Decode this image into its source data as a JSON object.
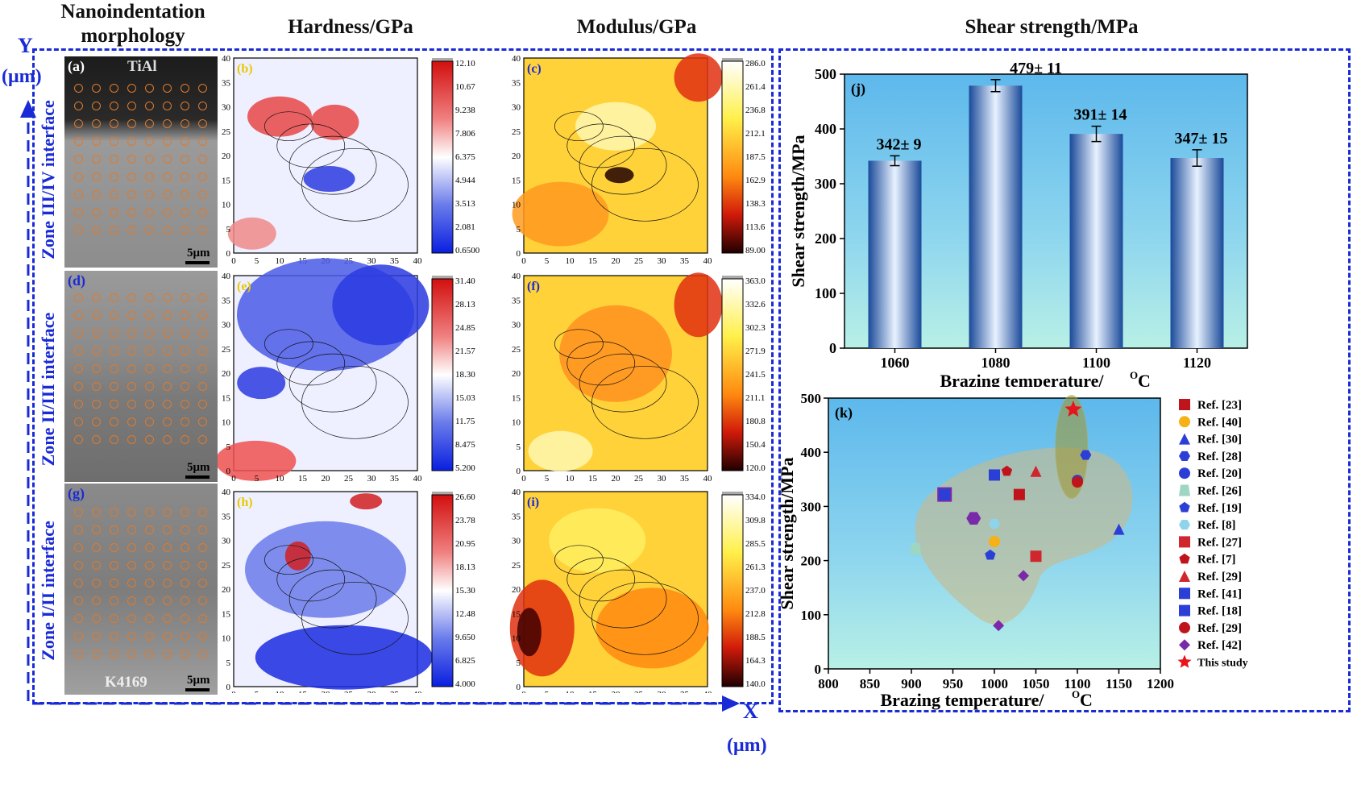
{
  "headers": {
    "morphology": "Nanoindentation morphology",
    "hardness": "Hardness/GPa",
    "modulus": "Modulus/GPa",
    "shear": "Shear strength/MPa"
  },
  "axes_labels": {
    "y_top": "Y",
    "y_unit": "(μm)",
    "x_right": "X",
    "x_unit": "(μm)"
  },
  "zones": [
    "Zone III/IV interface",
    "Zone II/III interface",
    "Zone I/II interface"
  ],
  "sem_panels": [
    {
      "letter": "(a)",
      "label_top": "TiAl",
      "label_bottom": "",
      "scale": "5μm"
    },
    {
      "letter": "(d)",
      "label_top": "",
      "label_bottom": "",
      "scale": "5μm"
    },
    {
      "letter": "(g)",
      "label_top": "",
      "label_bottom": "K4169",
      "scale": "5μm"
    }
  ],
  "contour_ticks": [
    "0",
    "5",
    "10",
    "15",
    "20",
    "25",
    "30",
    "35",
    "40"
  ],
  "contour_panels": [
    {
      "letter": "(b)",
      "kind": "hardness",
      "colorbar": [
        "12.10",
        "10.67",
        "9.238",
        "7.806",
        "6.375",
        "4.944",
        "3.513",
        "2.081",
        "0.6500"
      ]
    },
    {
      "letter": "(c)",
      "kind": "modulus",
      "colorbar": [
        "286.0",
        "261.4",
        "236.8",
        "212.1",
        "187.5",
        "162.9",
        "138.3",
        "113.6",
        "89.00"
      ]
    },
    {
      "letter": "(e)",
      "kind": "hardness",
      "colorbar": [
        "31.40",
        "28.13",
        "24.85",
        "21.57",
        "18.30",
        "15.03",
        "11.75",
        "8.475",
        "5.200"
      ]
    },
    {
      "letter": "(f)",
      "kind": "modulus",
      "colorbar": [
        "363.0",
        "332.6",
        "302.3",
        "271.9",
        "241.5",
        "211.1",
        "180.8",
        "150.4",
        "120.0"
      ]
    },
    {
      "letter": "(h)",
      "kind": "hardness",
      "colorbar": [
        "26.60",
        "23.78",
        "20.95",
        "18.13",
        "15.30",
        "12.48",
        "9.650",
        "6.825",
        "4.000"
      ]
    },
    {
      "letter": "(i)",
      "kind": "modulus",
      "colorbar": [
        "334.0",
        "309.8",
        "285.5",
        "261.3",
        "237.0",
        "212.8",
        "188.5",
        "164.3",
        "140.0"
      ]
    }
  ],
  "chart_data": [
    {
      "type": "bar",
      "panel": "(j)",
      "categories": [
        "1060",
        "1080",
        "1100",
        "1120"
      ],
      "values": [
        342,
        479,
        391,
        347
      ],
      "errors": [
        9,
        11,
        14,
        15
      ],
      "labels": [
        "342± 9",
        "479± 11",
        "391± 14",
        "347± 15"
      ],
      "xlabel": "Brazing temperature/",
      "xlabel_unit": "C",
      "xlabel_sup": "O",
      "ylabel": "Shear strength/MPa",
      "ylim": [
        0,
        500
      ],
      "yticks": [
        "0",
        "100",
        "200",
        "300",
        "400",
        "500"
      ]
    },
    {
      "type": "scatter",
      "panel": "(k)",
      "xlabel": "Brazing temperature/",
      "xlabel_unit": "C",
      "xlabel_sup": "O",
      "ylabel": "Shear strength/MPa",
      "xlim": [
        800,
        1200
      ],
      "ylim": [
        0,
        500
      ],
      "xticks": [
        "800",
        "850",
        "900",
        "950",
        "1000",
        "1050",
        "1100",
        "1150",
        "1200"
      ],
      "yticks": [
        "0",
        "100",
        "200",
        "300",
        "400",
        "500"
      ],
      "series": [
        {
          "name": "Ref. [23]",
          "marker": "square",
          "color": "#c0141c",
          "points": [
            [
              1030,
              322
            ]
          ]
        },
        {
          "name": "Ref. [40]",
          "marker": "circle",
          "color": "#f5b116",
          "points": [
            [
              1000,
              235
            ]
          ]
        },
        {
          "name": "Ref. [30]",
          "marker": "triangle",
          "color": "#2b3fd6",
          "points": [
            [
              1150,
              258
            ]
          ]
        },
        {
          "name": "Ref. [28]",
          "marker": "hexagon",
          "color": "#2b3fd6",
          "points": [
            [
              1110,
              395
            ]
          ]
        },
        {
          "name": "Ref. [20]",
          "marker": "circle",
          "color": "#2b3fd6",
          "points": [
            [
              1100,
              348
            ]
          ]
        },
        {
          "name": "Ref. [26]",
          "marker": "trapezoid",
          "color": "#9ed6c2",
          "points": [
            [
              905,
              222
            ]
          ]
        },
        {
          "name": "Ref. [19]",
          "marker": "pentagon",
          "color": "#2b3fd6",
          "points": [
            [
              995,
              210
            ]
          ]
        },
        {
          "name": "Ref. [8]",
          "marker": "hexagon",
          "color": "#8ed4ea",
          "points": [
            [
              1000,
              268
            ]
          ]
        },
        {
          "name": "Ref. [27]",
          "marker": "square",
          "color": "#d0262e",
          "points": [
            [
              1050,
              208
            ]
          ]
        },
        {
          "name": "Ref. [7]",
          "marker": "pentagon",
          "color": "#c0141c",
          "points": [
            [
              1015,
              365
            ]
          ]
        },
        {
          "name": "Ref. [29]",
          "marker": "triangle",
          "color": "#d0262e",
          "points": [
            [
              1050,
              365
            ]
          ]
        },
        {
          "name": "Ref. [41]",
          "marker": "square",
          "color": "#2b3fd6",
          "points": [
            [
              1000,
              358
            ]
          ]
        },
        {
          "name": "Ref. [18]",
          "marker": "square",
          "color": "#2b3fd6",
          "points": [
            [
              940,
              322
            ]
          ]
        },
        {
          "name": "Ref. [29]",
          "marker": "circle",
          "color": "#c0141c",
          "points": [
            [
              1100,
              345
            ]
          ]
        },
        {
          "name": "Ref. [42]",
          "marker": "diamond",
          "color": "#7a2aa8",
          "points": [
            [
              1035,
              172
            ],
            [
              1005,
              80
            ]
          ]
        },
        {
          "name": "This study",
          "marker": "star",
          "color": "#e8141c",
          "points": [
            [
              1095,
              479
            ]
          ]
        }
      ],
      "extra_markers": [
        {
          "marker": "hexagon",
          "color": "#7a2aa8",
          "x": 975,
          "y": 278
        },
        {
          "marker": "square",
          "color": "#7a2aa8",
          "x": 940,
          "y": 322
        }
      ]
    }
  ]
}
